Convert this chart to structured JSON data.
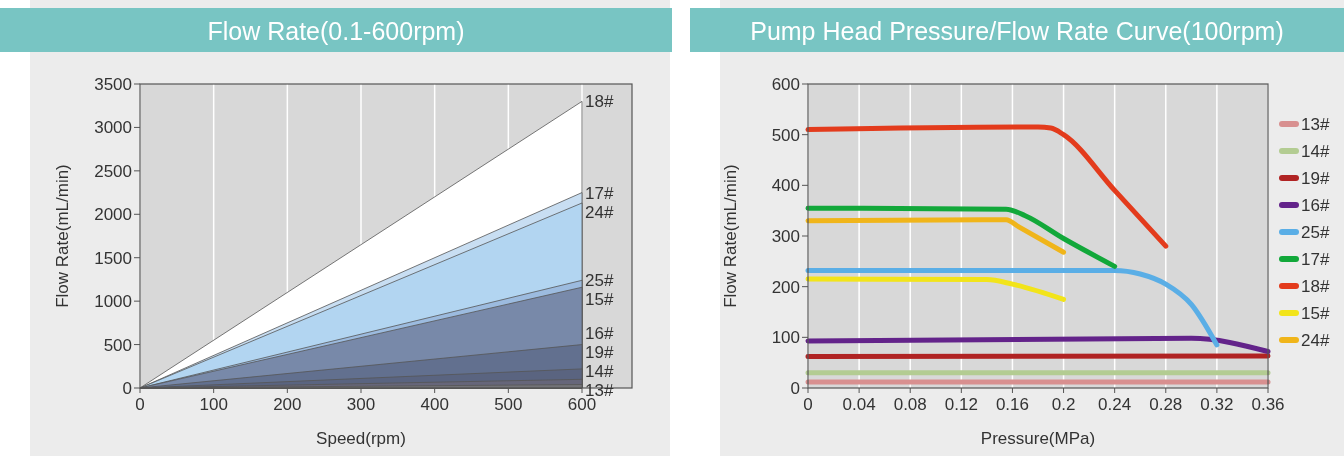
{
  "chart_data": [
    {
      "type": "area",
      "title": "Flow Rate(0.1-600rpm)",
      "xlabel": "Speed(rpm)",
      "ylabel": "Flow Rate(mL/min)",
      "xlim": [
        0,
        600
      ],
      "ylim": [
        0,
        3500
      ],
      "xticks": [
        0,
        100,
        200,
        300,
        400,
        500,
        600
      ],
      "yticks": [
        0,
        500,
        1000,
        1500,
        2000,
        2500,
        3000,
        3500
      ],
      "grid": "x",
      "legend": false,
      "series": [
        {
          "name": "18#",
          "color": "#ffffff",
          "x": [
            0,
            600
          ],
          "values": [
            0,
            3300
          ]
        },
        {
          "name": "17#",
          "color": "#c8def2",
          "x": [
            0,
            600
          ],
          "values": [
            0,
            2250
          ]
        },
        {
          "name": "24#",
          "color": "#b2d5f1",
          "x": [
            0,
            600
          ],
          "values": [
            0,
            2130
          ]
        },
        {
          "name": "25#",
          "color": "#9cbbdf",
          "x": [
            0,
            600
          ],
          "values": [
            0,
            1240
          ]
        },
        {
          "name": "15#",
          "color": "#7889a9",
          "x": [
            0,
            600
          ],
          "values": [
            0,
            1160
          ]
        },
        {
          "name": "16#",
          "color": "#62708f",
          "x": [
            0,
            600
          ],
          "values": [
            0,
            500
          ]
        },
        {
          "name": "19#",
          "color": "#5a6480",
          "x": [
            0,
            600
          ],
          "values": [
            0,
            220
          ]
        },
        {
          "name": "14#",
          "color": "#66667a",
          "x": [
            0,
            600
          ],
          "values": [
            0,
            100
          ]
        },
        {
          "name": "13#",
          "color": "#737378",
          "x": [
            0,
            600
          ],
          "values": [
            0,
            40
          ]
        }
      ]
    },
    {
      "type": "line",
      "title": "Pump Head Pressure/Flow Rate Curve(100rpm)",
      "xlabel": "Pressure(MPa)",
      "ylabel": "Flow Rate(mL/min)",
      "xlim": [
        0,
        0.36
      ],
      "ylim": [
        0,
        600
      ],
      "xticks": [
        0,
        0.04,
        0.08,
        0.12,
        0.16,
        0.2,
        0.24,
        0.28,
        0.32,
        0.36
      ],
      "yticks": [
        0,
        100,
        200,
        300,
        400,
        500,
        600
      ],
      "grid": "x",
      "legend": "right",
      "series": [
        {
          "name": "13#",
          "color": "#d89090",
          "x": [
            0,
            0.36
          ],
          "values": [
            12,
            12
          ]
        },
        {
          "name": "14#",
          "color": "#b3cc92",
          "x": [
            0,
            0.36
          ],
          "values": [
            30,
            30
          ]
        },
        {
          "name": "19#",
          "color": "#b02323",
          "x": [
            0,
            0.36
          ],
          "values": [
            62,
            63
          ]
        },
        {
          "name": "16#",
          "color": "#63238a",
          "x": [
            0,
            0.3,
            0.36
          ],
          "values": [
            93,
            98,
            72
          ]
        },
        {
          "name": "25#",
          "color": "#5aaee6",
          "x": [
            0,
            0.24,
            0.26,
            0.28,
            0.3,
            0.32
          ],
          "values": [
            232,
            232,
            225,
            205,
            165,
            85
          ]
        },
        {
          "name": "17#",
          "color": "#12a83a",
          "x": [
            0,
            0.155,
            0.17,
            0.2,
            0.24
          ],
          "values": [
            355,
            353,
            340,
            295,
            240
          ]
        },
        {
          "name": "18#",
          "color": "#e33b1c",
          "x": [
            0,
            0.18,
            0.19,
            0.2,
            0.24,
            0.28
          ],
          "values": [
            510,
            515,
            513,
            500,
            390,
            280
          ]
        },
        {
          "name": "15#",
          "color": "#f2e41a",
          "x": [
            0,
            0.14,
            0.16,
            0.2
          ],
          "values": [
            215,
            214,
            205,
            175
          ]
        },
        {
          "name": "24#",
          "color": "#f0b51a",
          "x": [
            0,
            0.155,
            0.165,
            0.2
          ],
          "values": [
            330,
            332,
            318,
            268
          ]
        }
      ]
    }
  ]
}
